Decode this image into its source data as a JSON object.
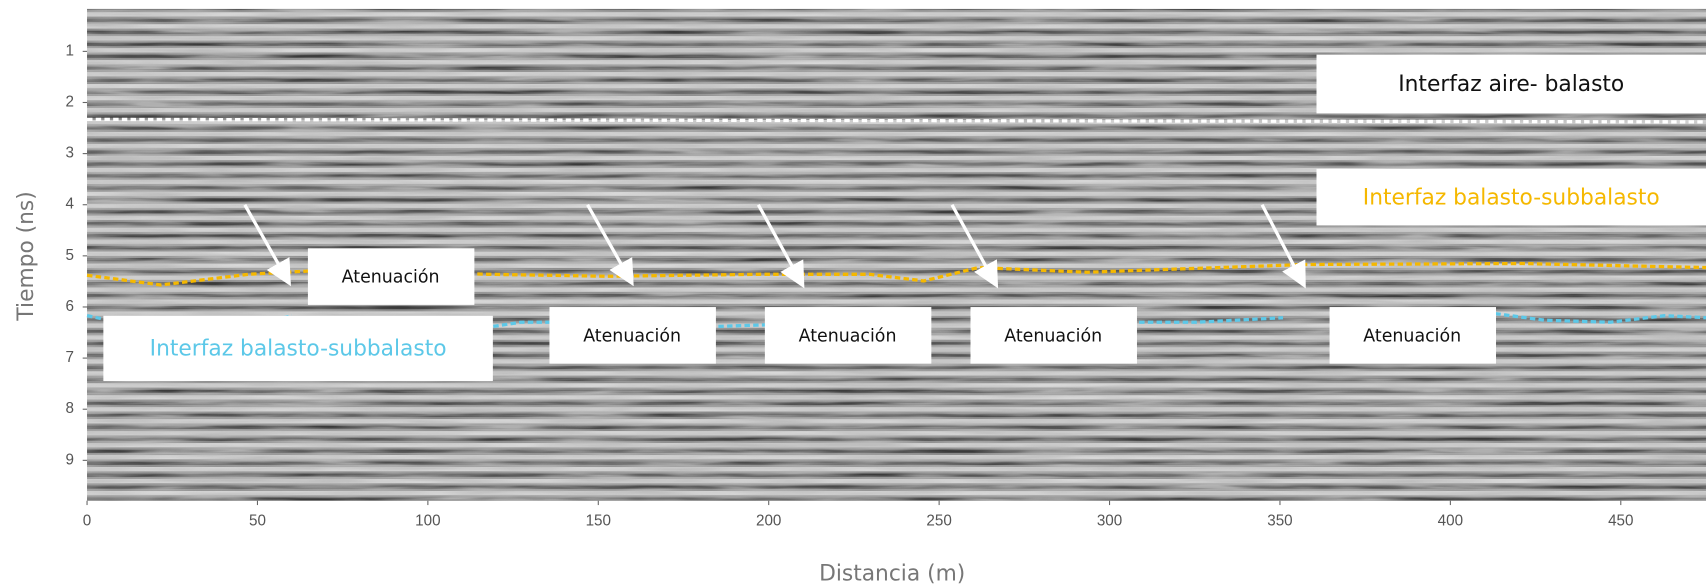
{
  "chart_data": {
    "type": "radargram",
    "x_label": "Distancia (m)",
    "y_label": "Tiempo (ns)",
    "xlim": [
      0,
      475
    ],
    "xticks": [
      0,
      50,
      100,
      150,
      200,
      250,
      300,
      350,
      400,
      450
    ],
    "ylim": [
      0.17,
      9.79
    ],
    "yticks": [
      1,
      2,
      3,
      4,
      5,
      6,
      7,
      8,
      9
    ],
    "y_inverted": true,
    "series": [
      {
        "name": "Interfaz aire- balasto",
        "color": "#ffffff",
        "x": [
          0,
          475
        ],
        "values": [
          2.33,
          2.38
        ]
      },
      {
        "name": "Interfaz balasto-subbalasto",
        "color": "#f5b800",
        "x": [
          0,
          21.7,
          47.3,
          69.7,
          117.6,
          152.8,
          197.5,
          229.5,
          245.5,
          261.5,
          293.4,
          357.3,
          421.2,
          475
        ],
        "values": [
          5.38,
          5.57,
          5.36,
          5.28,
          5.36,
          5.4,
          5.36,
          5.36,
          5.49,
          5.23,
          5.32,
          5.17,
          5.15,
          5.23
        ]
      },
      {
        "name": "Interfaz balasto-subbalasto",
        "color": "#5cc8e8",
        "x": [
          0,
          12.1,
          21.7,
          28.1,
          37.7,
          47.3,
          60.1,
          90,
          119.2,
          127.2,
          152.8,
          165,
          175.1,
          184.7,
          203.9,
          250,
          280.6,
          325.3,
          350.9,
          390,
          413.2,
          427.6,
          446.8,
          462.8,
          475
        ],
        "values": [
          6.17,
          6.34,
          6.38,
          6.3,
          6.21,
          6.38,
          6.17,
          null,
          6.38,
          6.3,
          6.3,
          null,
          6.3,
          6.38,
          6.34,
          null,
          6.3,
          6.3,
          6.21,
          null,
          6.13,
          6.26,
          6.3,
          6.17,
          6.21
        ]
      }
    ],
    "annotations": [
      "Atenuación",
      "Atenuación",
      "Atenuación",
      "Atenuación",
      "Atenuación"
    ]
  }
}
